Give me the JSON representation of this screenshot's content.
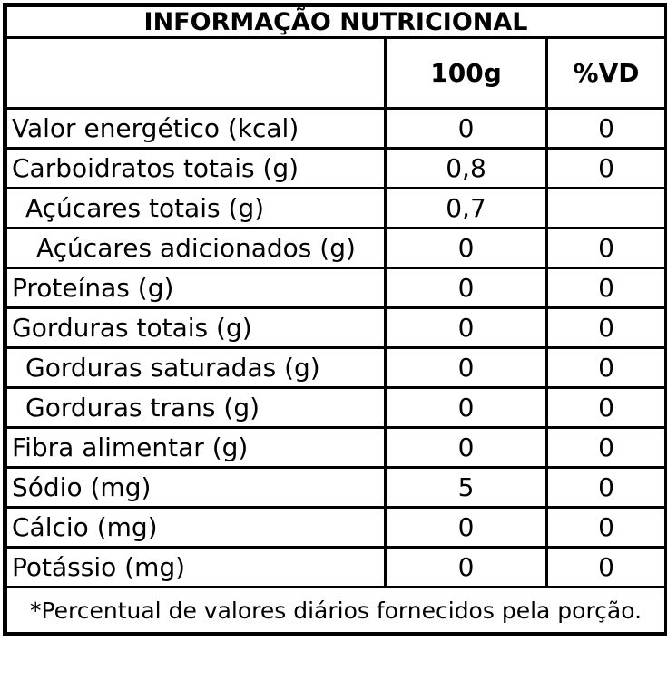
{
  "title": "INFORMAÇÃO NUTRICIONAL",
  "columns": {
    "nutrient": "",
    "per100g": "100g",
    "vd": "%VD"
  },
  "rows": [
    {
      "label": "Valor energético (kcal)",
      "indent": 0,
      "per100g": "0",
      "vd": "0"
    },
    {
      "label": "Carboidratos totais (g)",
      "indent": 0,
      "per100g": "0,8",
      "vd": "0"
    },
    {
      "label": "Açúcares totais (g)",
      "indent": 1,
      "per100g": "0,7",
      "vd": ""
    },
    {
      "label": "Açúcares adicionados (g)",
      "indent": 2,
      "per100g": "0",
      "vd": "0"
    },
    {
      "label": "Proteínas (g)",
      "indent": 0,
      "per100g": "0",
      "vd": "0"
    },
    {
      "label": "Gorduras totais (g)",
      "indent": 0,
      "per100g": "0",
      "vd": "0"
    },
    {
      "label": "Gorduras saturadas (g)",
      "indent": 1,
      "per100g": "0",
      "vd": "0"
    },
    {
      "label": "Gorduras trans (g)",
      "indent": 1,
      "per100g": "0",
      "vd": "0"
    },
    {
      "label": "Fibra alimentar (g)",
      "indent": 0,
      "per100g": "0",
      "vd": "0"
    },
    {
      "label": "Sódio (mg)",
      "indent": 0,
      "per100g": "5",
      "vd": "0"
    },
    {
      "label": "Cálcio (mg)",
      "indent": 0,
      "per100g": "0",
      "vd": "0"
    },
    {
      "label": "Potássio (mg)",
      "indent": 0,
      "per100g": "0",
      "vd": "0"
    }
  ],
  "footnote": "*Percentual de valores diários fornecidos pela porção."
}
